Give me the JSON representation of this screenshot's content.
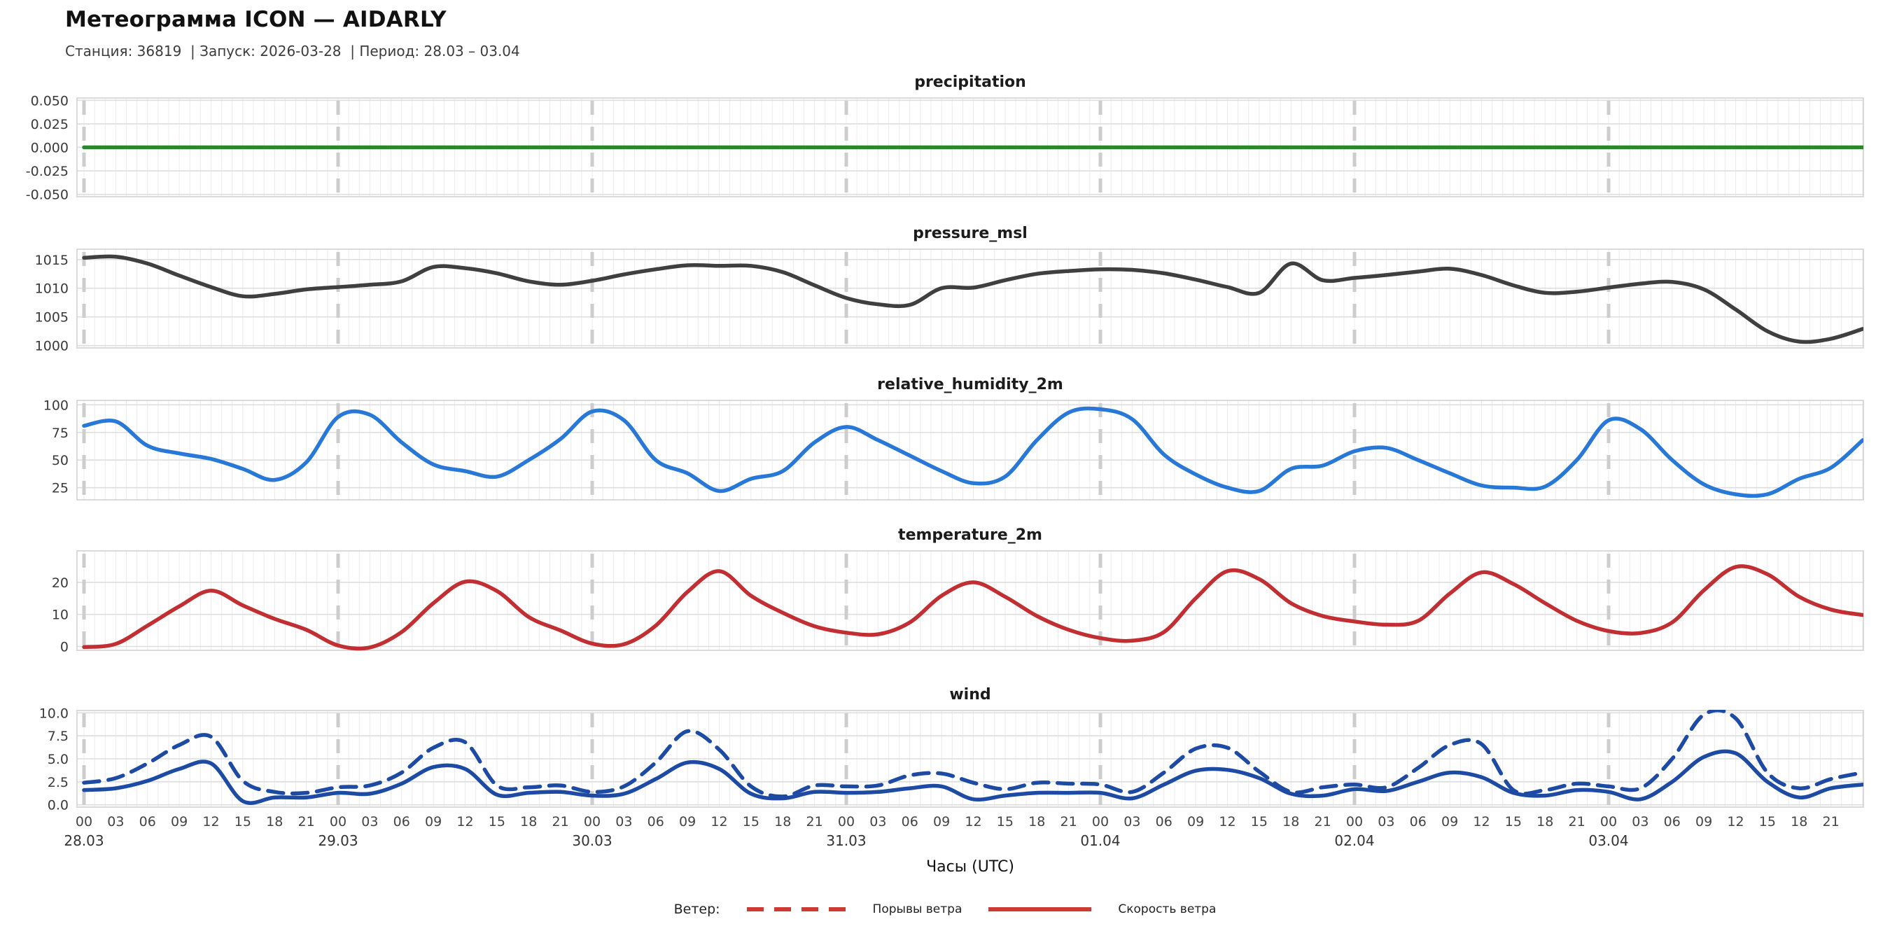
{
  "header": {
    "title": "Метеограмма ICON — AIDARLY",
    "subtitle": "Станция: 36819  | Запуск: 2026-03-28  | Период: 28.03 – 03.04"
  },
  "legend": {
    "label": "Ветер:",
    "gusts": "Порывы ветра",
    "speed": "Скорость ветра",
    "color": "#cc3a36"
  },
  "axis": {
    "xlabel": "Часы (UTC)",
    "hour_tick_labels": [
      "00",
      "03",
      "06",
      "09",
      "12",
      "15",
      "18",
      "21"
    ],
    "day_labels": [
      "28.03",
      "29.03",
      "30.03",
      "31.03",
      "01.04",
      "02.04",
      "03.04"
    ],
    "hours_total": 168,
    "sample_step_hours": 3
  },
  "colors": {
    "grid_vertical": "#ececec",
    "grid_horizontal": "#dedede",
    "box_border": "#d2d2d2",
    "day_separator": "#cdcdcd",
    "tick_label": "#3a3a3a",
    "panel_title": "#1c1c1c"
  },
  "chart_data": [
    {
      "type": "line",
      "title": "precipitation",
      "ylim": [
        -0.0525,
        0.0525
      ],
      "yticks": [
        0.05,
        0.025,
        0,
        -0.025,
        -0.05
      ],
      "ytick_labels": [
        "0.050",
        "0.025",
        "0.000",
        "-0.025",
        "-0.050"
      ],
      "series": [
        {
          "name": "precipitation",
          "color": "#2b872b",
          "dashed": false,
          "values": [
            0,
            0,
            0,
            0,
            0,
            0,
            0,
            0,
            0,
            0,
            0,
            0,
            0,
            0,
            0,
            0,
            0,
            0,
            0,
            0,
            0,
            0,
            0,
            0,
            0,
            0,
            0,
            0,
            0,
            0,
            0,
            0,
            0,
            0,
            0,
            0,
            0,
            0,
            0,
            0,
            0,
            0,
            0,
            0,
            0,
            0,
            0,
            0,
            0,
            0,
            0,
            0,
            0,
            0,
            0,
            0,
            0
          ]
        }
      ]
    },
    {
      "type": "line",
      "title": "pressure_msl",
      "ylim": [
        999.6,
        1016.8
      ],
      "yticks": [
        1000,
        1005,
        1010,
        1015
      ],
      "ytick_labels": [
        "1000",
        "1005",
        "1010",
        "1015"
      ],
      "series": [
        {
          "name": "pressure_msl",
          "color": "#3f3f3f",
          "dashed": false,
          "values": [
            1015.3,
            1015.5,
            1014.3,
            1012.2,
            1010.2,
            1008.6,
            1009.0,
            1009.8,
            1010.2,
            1010.6,
            1011.2,
            1013.7,
            1013.5,
            1012.6,
            1011.2,
            1010.6,
            1011.3,
            1012.4,
            1013.3,
            1014.0,
            1013.9,
            1013.9,
            1012.8,
            1010.5,
            1008.3,
            1007.2,
            1007.1,
            1010.0,
            1010.1,
            1011.4,
            1012.5,
            1013.0,
            1013.3,
            1013.2,
            1012.6,
            1011.5,
            1010.2,
            1009.2,
            1014.3,
            1011.4,
            1011.8,
            1012.3,
            1012.9,
            1013.4,
            1012.3,
            1010.5,
            1009.2,
            1009.4,
            1010.1,
            1010.8,
            1011.1,
            1009.8,
            1006.3,
            1002.5,
            1000.7,
            1001.2,
            1002.9
          ]
        }
      ]
    },
    {
      "type": "line",
      "title": "relative_humidity_2m",
      "ylim": [
        14,
        104
      ],
      "yticks": [
        25,
        50,
        75,
        100
      ],
      "ytick_labels": [
        "25",
        "50",
        "75",
        "100"
      ],
      "series": [
        {
          "name": "relative_humidity_2m",
          "color": "#2878d8",
          "dashed": false,
          "values": [
            81,
            85,
            63,
            56,
            51,
            42,
            32,
            48,
            89,
            91,
            66,
            46,
            40,
            35,
            50,
            69,
            94,
            86,
            50,
            38,
            22,
            33,
            40,
            66,
            80,
            68,
            54,
            40,
            29,
            35,
            68,
            93,
            96,
            87,
            55,
            37,
            25,
            22,
            42,
            45,
            58,
            61,
            50,
            38,
            27,
            25,
            26,
            50,
            86,
            78,
            50,
            28,
            19,
            19,
            33,
            43,
            68
          ]
        }
      ]
    },
    {
      "type": "line",
      "title": "temperature_2m",
      "ylim": [
        -1.2,
        29.8
      ],
      "yticks": [
        0,
        10,
        20
      ],
      "ytick_labels": [
        "0",
        "10",
        "20"
      ],
      "series": [
        {
          "name": "temperature_2m",
          "color": "#c22f32",
          "dashed": false,
          "values": [
            -0.2,
            0.8,
            6.5,
            12.5,
            17.4,
            12.8,
            8.6,
            5.2,
            0.3,
            -0.3,
            4.5,
            13.5,
            20.2,
            17.3,
            9.2,
            5.0,
            0.9,
            0.7,
            6.5,
            17.0,
            23.5,
            15.8,
            10.5,
            6.3,
            4.3,
            3.8,
            7.5,
            15.8,
            20.0,
            15.5,
            9.5,
            5.2,
            2.6,
            1.8,
            4.5,
            15.0,
            23.5,
            21.0,
            13.5,
            9.5,
            7.8,
            6.8,
            8.0,
            16.5,
            23.1,
            19.5,
            13.5,
            8.0,
            4.8,
            4.2,
            7.5,
            17.5,
            24.8,
            22.5,
            15.5,
            11.5,
            9.8
          ]
        }
      ]
    },
    {
      "type": "line",
      "title": "wind",
      "ylim": [
        -0.25,
        10.25
      ],
      "yticks": [
        0,
        2.5,
        5,
        7.5,
        10
      ],
      "ytick_labels": [
        "0.0",
        "2.5",
        "5.0",
        "7.5",
        "10.0"
      ],
      "series": [
        {
          "name": "wind_gusts",
          "color": "#1d4ba4",
          "dashed": true,
          "values": [
            2.4,
            2.9,
            4.5,
            6.5,
            7.4,
            2.6,
            1.4,
            1.3,
            1.9,
            2.1,
            3.5,
            6.2,
            6.8,
            2.1,
            1.9,
            2.1,
            1.4,
            2.0,
            4.6,
            8.0,
            6.0,
            2.0,
            0.9,
            2.1,
            2.0,
            2.1,
            3.2,
            3.4,
            2.4,
            1.7,
            2.4,
            2.3,
            2.2,
            1.4,
            3.5,
            6.1,
            6.2,
            3.6,
            1.4,
            1.9,
            2.2,
            1.9,
            4.0,
            6.5,
            6.6,
            1.6,
            1.6,
            2.3,
            2.0,
            1.8,
            5.0,
            9.8,
            9.4,
            3.5,
            1.8,
            2.8,
            3.5
          ]
        },
        {
          "name": "wind_speed",
          "color": "#1d4ba4",
          "dashed": false,
          "values": [
            1.6,
            1.8,
            2.6,
            3.9,
            4.5,
            0.4,
            0.8,
            0.8,
            1.3,
            1.2,
            2.3,
            4.1,
            3.9,
            1.1,
            1.3,
            1.4,
            1.0,
            1.2,
            2.8,
            4.6,
            3.9,
            1.2,
            0.7,
            1.4,
            1.3,
            1.4,
            1.8,
            2.0,
            0.6,
            1.0,
            1.3,
            1.3,
            1.3,
            0.7,
            2.2,
            3.7,
            3.8,
            2.9,
            1.2,
            1.0,
            1.7,
            1.5,
            2.5,
            3.5,
            3.0,
            1.3,
            1.0,
            1.6,
            1.4,
            0.6,
            2.5,
            5.2,
            5.6,
            2.5,
            0.8,
            1.8,
            2.2
          ]
        }
      ]
    }
  ]
}
